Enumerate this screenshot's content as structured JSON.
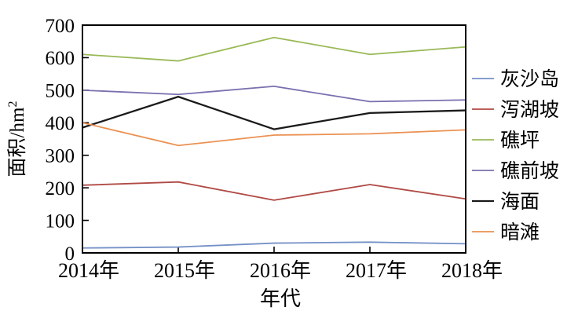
{
  "chart_data": {
    "type": "line",
    "title": "",
    "categories": [
      "2014年",
      "2015年",
      "2016年",
      "2017年",
      "2018年"
    ],
    "series": [
      {
        "name": "灰沙岛",
        "color": "#7591c7",
        "width": 1.8,
        "values": [
          15,
          18,
          30,
          33,
          28
        ]
      },
      {
        "name": "泻湖坡",
        "color": "#b04a45",
        "width": 1.8,
        "values": [
          208,
          218,
          162,
          210,
          166
        ]
      },
      {
        "name": "礁坪",
        "color": "#9ab957",
        "width": 1.8,
        "values": [
          610,
          590,
          662,
          610,
          633
        ]
      },
      {
        "name": "礁前坡",
        "color": "#7b6faf",
        "width": 1.8,
        "values": [
          500,
          487,
          512,
          465,
          470
        ]
      },
      {
        "name": "海面",
        "color": "#1a1a1a",
        "width": 2.3,
        "values": [
          385,
          480,
          380,
          430,
          438
        ]
      },
      {
        "name": "暗滩",
        "color": "#eb9152",
        "width": 1.8,
        "values": [
          400,
          330,
          362,
          366,
          378
        ]
      }
    ],
    "xlabel": "年代",
    "ylabel": "面积/hm",
    "ylabel_superscript": "2",
    "ylim": [
      0,
      700
    ],
    "yticks": [
      0,
      100,
      200,
      300,
      400,
      500,
      600,
      700
    ],
    "grid": false,
    "legend_position": "right",
    "axis_color": "#000000",
    "background_color": "#ffffff"
  }
}
